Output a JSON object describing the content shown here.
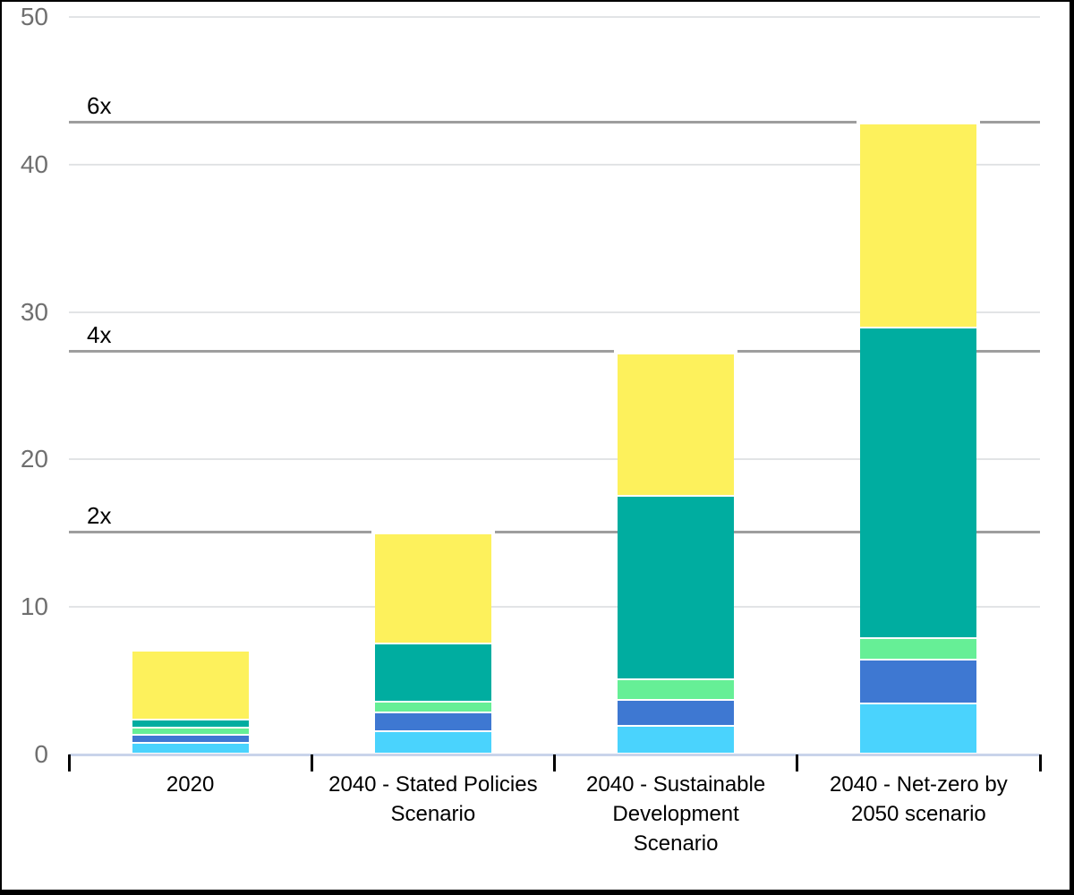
{
  "chart_data": {
    "type": "bar",
    "stacked": true,
    "title": "",
    "xlabel": "",
    "ylabel": "",
    "ylim": [
      0,
      50
    ],
    "grid": true,
    "categories": [
      "2020",
      "2040 - Stated Policies\nScenario",
      "2040 - Sustainable\nDevelopment\nScenario",
      "2040 - Net-zero by\n2050 scenario"
    ],
    "series": [
      {
        "name": "segment-cyan",
        "color": "#4ad3fd",
        "values": [
          0.65,
          1.45,
          1.8,
          3.3
        ]
      },
      {
        "name": "segment-blue",
        "color": "#3e78d2",
        "values": [
          0.5,
          1.2,
          1.7,
          2.9
        ]
      },
      {
        "name": "segment-green",
        "color": "#66ef96",
        "values": [
          0.4,
          0.65,
          1.3,
          1.4
        ]
      },
      {
        "name": "segment-teal",
        "color": "#00ada0",
        "values": [
          0.45,
          3.95,
          12.55,
          21.2
        ]
      },
      {
        "name": "segment-yellow",
        "color": "#fdf15c",
        "values": [
          5.0,
          7.65,
          9.75,
          13.9
        ]
      }
    ],
    "totals": [
      7.0,
      14.9,
      27.1,
      42.7
    ],
    "reference_lines": [
      {
        "label": "2x",
        "value": 15.05,
        "category_index": 1
      },
      {
        "label": "4x",
        "value": 27.35,
        "category_index": 2
      },
      {
        "label": "6x",
        "value": 42.9,
        "category_index": 3
      }
    ],
    "y_ticks": [
      0,
      10,
      20,
      30,
      40,
      50
    ],
    "legend": "none"
  },
  "colors": {
    "gridline": "#e2e4e6",
    "reference_line": "#9e9e9e",
    "baseline": "#c9d4ea",
    "y_label": "#6f6f6f",
    "x_label": "#000000",
    "frame": "#000000",
    "background": "#ffffff"
  }
}
